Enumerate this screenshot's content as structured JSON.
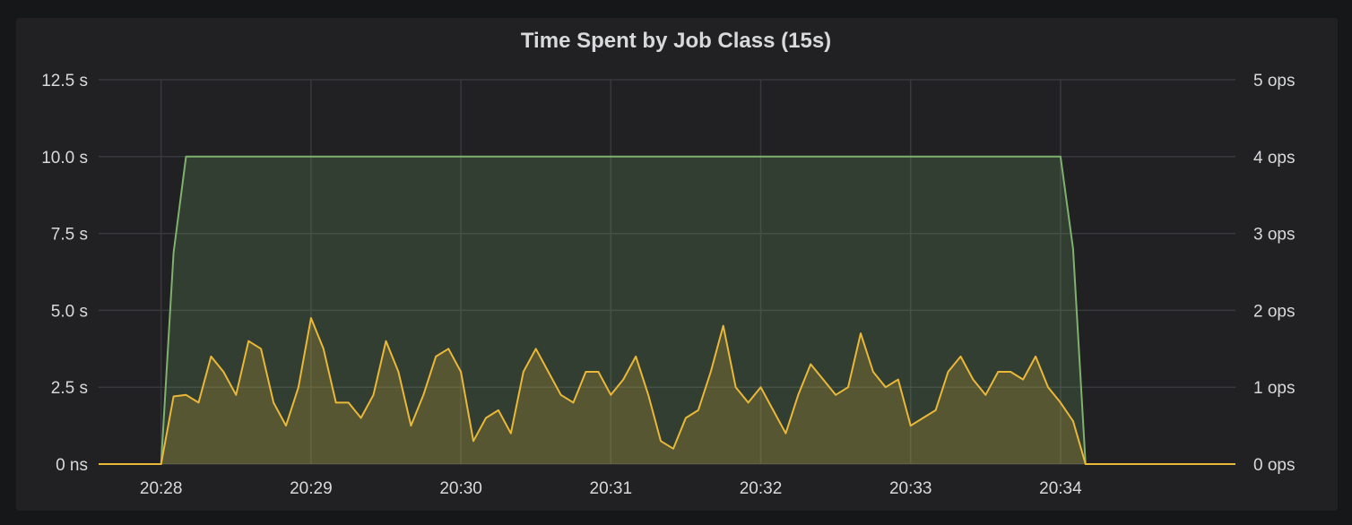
{
  "panel": {
    "title": "Time Spent by Job Class (15s)"
  },
  "chart_data": {
    "type": "area",
    "title": "Time Spent by Job Class (15s)",
    "x_ticks": [
      "20:28",
      "20:29",
      "20:30",
      "20:31",
      "20:32",
      "20:33",
      "20:34"
    ],
    "x_range": [
      "20:27:35",
      "20:35:10"
    ],
    "y_left": {
      "ticks": [
        "0 ns",
        "2.5 s",
        "5.0 s",
        "7.5 s",
        "10.0 s",
        "12.5 s"
      ],
      "range": [
        0,
        12.5
      ],
      "unit": "s"
    },
    "y_right": {
      "ticks": [
        "0 ops",
        "1 ops",
        "2 ops",
        "3 ops",
        "4 ops",
        "5 ops"
      ],
      "range": [
        0,
        5
      ],
      "unit": "ops"
    },
    "grid": true,
    "legend": "none",
    "series": [
      {
        "axis": "right",
        "color": "#7eb26d",
        "fill": true,
        "x": [
          "20:27:35",
          "20:28:00",
          "20:28:05",
          "20:28:10",
          "20:34:00",
          "20:34:05",
          "20:34:10",
          "20:35:10"
        ],
        "values": [
          0,
          0,
          2.75,
          4,
          4,
          2.8,
          0,
          0
        ]
      },
      {
        "axis": "left",
        "color": "#eab839",
        "fill": true,
        "x": [
          "20:27:35",
          "20:28:00",
          "20:28:05",
          "20:28:10",
          "20:28:15",
          "20:28:20",
          "20:28:25",
          "20:28:30",
          "20:28:35",
          "20:28:40",
          "20:28:45",
          "20:28:50",
          "20:28:55",
          "20:29:00",
          "20:29:05",
          "20:29:10",
          "20:29:15",
          "20:29:20",
          "20:29:25",
          "20:29:30",
          "20:29:35",
          "20:29:40",
          "20:29:45",
          "20:29:50",
          "20:29:55",
          "20:30:00",
          "20:30:05",
          "20:30:10",
          "20:30:15",
          "20:30:20",
          "20:30:25",
          "20:30:30",
          "20:30:35",
          "20:30:40",
          "20:30:45",
          "20:30:50",
          "20:30:55",
          "20:31:00",
          "20:31:05",
          "20:31:10",
          "20:31:15",
          "20:31:20",
          "20:31:25",
          "20:31:30",
          "20:31:35",
          "20:31:40",
          "20:31:45",
          "20:31:50",
          "20:31:55",
          "20:32:00",
          "20:32:05",
          "20:32:10",
          "20:32:15",
          "20:32:20",
          "20:32:25",
          "20:32:30",
          "20:32:35",
          "20:32:40",
          "20:32:45",
          "20:32:50",
          "20:32:55",
          "20:33:00",
          "20:33:05",
          "20:33:10",
          "20:33:15",
          "20:33:20",
          "20:33:25",
          "20:33:30",
          "20:33:35",
          "20:33:40",
          "20:33:45",
          "20:33:50",
          "20:33:55",
          "20:34:00",
          "20:34:05",
          "20:34:10",
          "20:35:10"
        ],
        "values": [
          0,
          0,
          2.2,
          2.25,
          2.0,
          3.5,
          3.0,
          2.25,
          4.0,
          3.75,
          2.0,
          1.25,
          2.5,
          4.75,
          3.75,
          2.0,
          2.0,
          1.5,
          2.25,
          4.0,
          3.0,
          1.25,
          2.25,
          3.5,
          3.75,
          3.0,
          0.75,
          1.5,
          1.75,
          1.0,
          3.0,
          3.75,
          3.0,
          2.25,
          2.0,
          3.0,
          3.0,
          2.25,
          2.75,
          3.5,
          2.25,
          0.75,
          0.5,
          1.5,
          1.75,
          3.0,
          4.5,
          2.5,
          2.0,
          2.5,
          1.75,
          1.0,
          2.25,
          3.25,
          2.75,
          2.25,
          2.5,
          4.25,
          3.0,
          2.5,
          2.75,
          1.25,
          1.5,
          1.75,
          3.0,
          3.5,
          2.75,
          2.25,
          3.0,
          3.0,
          2.75,
          3.5,
          2.5,
          2.0,
          1.4,
          0,
          0
        ]
      }
    ]
  }
}
